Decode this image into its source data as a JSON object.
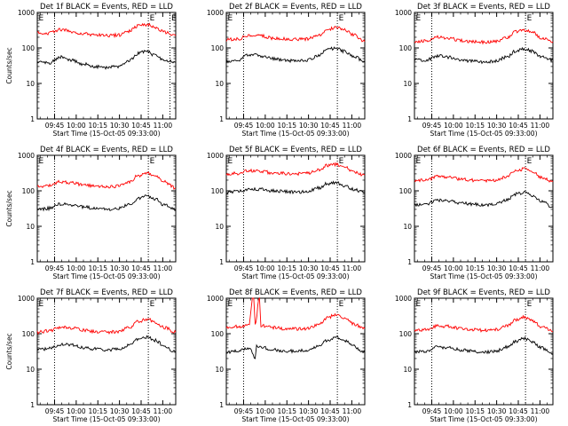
{
  "colors": {
    "events": "#000000",
    "lld": "#ff0000",
    "background": "#ffffff"
  },
  "chart_data": [
    {
      "type": "line",
      "panel": 1,
      "title": "Det 1f BLACK = Events, RED = LLD",
      "xlabel": "Start Time (15-Oct-05 09:33:00)",
      "ylabel": "Counts/sec",
      "x_ticks": [
        "09:45",
        "10:00",
        "10:15",
        "10:30",
        "10:45",
        "11:00"
      ],
      "y_ticks": [
        "1",
        "10",
        "100",
        "1000"
      ],
      "yscale": "log",
      "ylim": [
        1,
        1000
      ],
      "xlim": [
        "09:33",
        "11:09"
      ],
      "dotted_lines_at": [
        "09:45",
        "10:50",
        "11:05"
      ],
      "markers": [
        {
          "label": "E",
          "at": "09:33"
        },
        {
          "label": "E",
          "at": "10:50"
        },
        {
          "label": "E",
          "at": "11:05"
        }
      ],
      "series": [
        {
          "name": "Events",
          "color": "black",
          "x": [
            "09:33",
            "09:41",
            "09:49",
            "09:57",
            "10:05",
            "10:13",
            "10:21",
            "10:29",
            "10:37",
            "10:43",
            "10:49",
            "10:55",
            "11:01",
            "11:09"
          ],
          "values": [
            40,
            38,
            55,
            45,
            35,
            30,
            28,
            30,
            45,
            70,
            80,
            60,
            45,
            40
          ]
        },
        {
          "name": "LLD",
          "color": "red",
          "x": [
            "09:33",
            "09:41",
            "09:49",
            "09:57",
            "10:05",
            "10:13",
            "10:21",
            "10:29",
            "10:37",
            "10:43",
            "10:49",
            "10:55",
            "11:01",
            "11:09"
          ],
          "values": [
            270,
            260,
            330,
            290,
            250,
            230,
            220,
            230,
            300,
            420,
            450,
            380,
            280,
            220
          ]
        }
      ]
    },
    {
      "type": "line",
      "panel": 2,
      "title": "Det 2f BLACK = Events, RED = LLD",
      "xlabel": "Start Time (15-Oct-05 09:33:00)",
      "ylabel": "",
      "x_ticks": [
        "09:45",
        "10:00",
        "10:15",
        "10:30",
        "10:45",
        "11:00"
      ],
      "y_ticks": [
        "1",
        "10",
        "100",
        "1000"
      ],
      "yscale": "log",
      "ylim": [
        1,
        1000
      ],
      "xlim": [
        "09:33",
        "11:09"
      ],
      "dotted_lines_at": [
        "09:45",
        "10:50"
      ],
      "markers": [
        {
          "label": "E",
          "at": "09:33"
        },
        {
          "label": "E",
          "at": "10:50"
        }
      ],
      "series": [
        {
          "name": "Events",
          "color": "black",
          "x": [
            "09:33",
            "09:41",
            "09:49",
            "09:57",
            "10:05",
            "10:13",
            "10:21",
            "10:29",
            "10:37",
            "10:43",
            "10:49",
            "10:55",
            "11:01",
            "11:09"
          ],
          "values": [
            40,
            45,
            65,
            60,
            50,
            45,
            43,
            45,
            60,
            90,
            100,
            80,
            60,
            40
          ]
        },
        {
          "name": "LLD",
          "color": "red",
          "x": [
            "09:33",
            "09:41",
            "09:49",
            "09:57",
            "10:05",
            "10:13",
            "10:21",
            "10:29",
            "10:37",
            "10:43",
            "10:49",
            "10:55",
            "11:01",
            "11:09"
          ],
          "values": [
            170,
            180,
            230,
            220,
            190,
            180,
            175,
            180,
            230,
            330,
            380,
            320,
            240,
            150
          ]
        }
      ]
    },
    {
      "type": "line",
      "panel": 3,
      "title": "Det 3f BLACK = Events, RED = LLD",
      "xlabel": "Start Time (15-Oct-05 09:33:00)",
      "ylabel": "",
      "x_ticks": [
        "09:45",
        "10:00",
        "10:15",
        "10:30",
        "10:45",
        "11:00"
      ],
      "y_ticks": [
        "1",
        "10",
        "100",
        "1000"
      ],
      "yscale": "log",
      "ylim": [
        1,
        1000
      ],
      "xlim": [
        "09:33",
        "11:09"
      ],
      "dotted_lines_at": [
        "09:45",
        "10:50"
      ],
      "markers": [
        {
          "label": "E",
          "at": "09:33"
        },
        {
          "label": "E",
          "at": "10:50"
        }
      ],
      "series": [
        {
          "name": "Events",
          "color": "black",
          "x": [
            "09:33",
            "09:41",
            "09:49",
            "09:57",
            "10:05",
            "10:13",
            "10:21",
            "10:29",
            "10:37",
            "10:43",
            "10:49",
            "10:55",
            "11:01",
            "11:09"
          ],
          "values": [
            45,
            45,
            60,
            55,
            45,
            42,
            40,
            42,
            55,
            80,
            95,
            80,
            55,
            45
          ]
        },
        {
          "name": "LLD",
          "color": "red",
          "x": [
            "09:33",
            "09:41",
            "09:49",
            "09:57",
            "10:05",
            "10:13",
            "10:21",
            "10:29",
            "10:37",
            "10:43",
            "10:49",
            "10:55",
            "11:01",
            "11:09"
          ],
          "values": [
            150,
            160,
            200,
            190,
            160,
            150,
            145,
            150,
            190,
            280,
            320,
            270,
            190,
            150
          ]
        }
      ]
    },
    {
      "type": "line",
      "panel": 4,
      "title": "Det 4f BLACK = Events, RED = LLD",
      "xlabel": "Start Time (15-Oct-05 09:33:00)",
      "ylabel": "Counts/sec",
      "x_ticks": [
        "09:45",
        "10:00",
        "10:15",
        "10:30",
        "10:45",
        "11:00"
      ],
      "y_ticks": [
        "1",
        "10",
        "100",
        "1000"
      ],
      "yscale": "log",
      "ylim": [
        1,
        1000
      ],
      "xlim": [
        "09:33",
        "11:09"
      ],
      "dotted_lines_at": [
        "09:45",
        "10:50"
      ],
      "markers": [
        {
          "label": "E",
          "at": "09:33"
        },
        {
          "label": "E",
          "at": "10:50"
        }
      ],
      "series": [
        {
          "name": "Events",
          "color": "black",
          "x": [
            "09:33",
            "09:41",
            "09:49",
            "09:57",
            "10:05",
            "10:13",
            "10:21",
            "10:29",
            "10:37",
            "10:43",
            "10:49",
            "10:55",
            "11:01",
            "11:09"
          ],
          "values": [
            30,
            32,
            42,
            40,
            35,
            32,
            30,
            32,
            42,
            60,
            70,
            60,
            40,
            30
          ]
        },
        {
          "name": "LLD",
          "color": "red",
          "x": [
            "09:33",
            "09:41",
            "09:49",
            "09:57",
            "10:05",
            "10:13",
            "10:21",
            "10:29",
            "10:37",
            "10:43",
            "10:49",
            "10:55",
            "11:01",
            "11:09"
          ],
          "values": [
            130,
            140,
            180,
            170,
            145,
            135,
            130,
            135,
            180,
            270,
            310,
            260,
            180,
            120
          ]
        }
      ]
    },
    {
      "type": "line",
      "panel": 5,
      "title": "Det 5f BLACK = Events, RED = LLD",
      "xlabel": "Start Time (15-Oct-05 09:33:00)",
      "ylabel": "",
      "x_ticks": [
        "09:45",
        "10:00",
        "10:15",
        "10:30",
        "10:45",
        "11:00"
      ],
      "y_ticks": [
        "1",
        "10",
        "100",
        "1000"
      ],
      "yscale": "log",
      "ylim": [
        1,
        1000
      ],
      "xlim": [
        "09:33",
        "11:09"
      ],
      "dotted_lines_at": [
        "09:45",
        "10:50"
      ],
      "markers": [
        {
          "label": "E",
          "at": "09:33"
        },
        {
          "label": "E",
          "at": "10:50"
        }
      ],
      "series": [
        {
          "name": "Events",
          "color": "black",
          "x": [
            "09:33",
            "09:41",
            "09:49",
            "09:57",
            "10:05",
            "10:13",
            "10:21",
            "10:29",
            "10:37",
            "10:43",
            "10:49",
            "10:55",
            "11:01",
            "11:09"
          ],
          "values": [
            90,
            95,
            115,
            110,
            100,
            95,
            92,
            95,
            120,
            160,
            170,
            140,
            110,
            90
          ]
        },
        {
          "name": "LLD",
          "color": "red",
          "x": [
            "09:33",
            "09:41",
            "09:49",
            "09:57",
            "10:05",
            "10:13",
            "10:21",
            "10:29",
            "10:37",
            "10:43",
            "10:49",
            "10:55",
            "11:01",
            "11:09"
          ],
          "values": [
            300,
            310,
            370,
            360,
            320,
            310,
            300,
            310,
            380,
            520,
            560,
            470,
            350,
            280
          ]
        }
      ]
    },
    {
      "type": "line",
      "panel": 6,
      "title": "Det 6f BLACK = Events, RED = LLD",
      "xlabel": "Start Time (15-Oct-05 09:33:00)",
      "ylabel": "",
      "x_ticks": [
        "09:45",
        "10:00",
        "10:15",
        "10:30",
        "10:45",
        "11:00"
      ],
      "y_ticks": [
        "1",
        "10",
        "100",
        "1000"
      ],
      "yscale": "log",
      "ylim": [
        1,
        1000
      ],
      "xlim": [
        "09:33",
        "11:09"
      ],
      "dotted_lines_at": [
        "09:45",
        "10:50"
      ],
      "markers": [
        {
          "label": "E",
          "at": "09:33"
        },
        {
          "label": "E",
          "at": "10:50"
        }
      ],
      "series": [
        {
          "name": "Events",
          "color": "black",
          "x": [
            "09:33",
            "09:41",
            "09:49",
            "09:57",
            "10:05",
            "10:13",
            "10:21",
            "10:29",
            "10:37",
            "10:43",
            "10:49",
            "10:55",
            "11:01",
            "11:09"
          ],
          "values": [
            40,
            42,
            55,
            52,
            45,
            42,
            40,
            42,
            55,
            80,
            90,
            75,
            50,
            35
          ]
        },
        {
          "name": "LLD",
          "color": "red",
          "x": [
            "09:33",
            "09:41",
            "09:49",
            "09:57",
            "10:05",
            "10:13",
            "10:21",
            "10:29",
            "10:37",
            "10:43",
            "10:49",
            "10:55",
            "11:01",
            "11:09"
          ],
          "values": [
            190,
            200,
            250,
            240,
            210,
            200,
            195,
            200,
            250,
            360,
            410,
            340,
            240,
            180
          ]
        }
      ]
    },
    {
      "type": "line",
      "panel": 7,
      "title": "Det 7f BLACK = Events, RED = LLD",
      "xlabel": "Start Time (15-Oct-05 09:33:00)",
      "ylabel": "Counts/sec",
      "x_ticks": [
        "09:45",
        "10:00",
        "10:15",
        "10:30",
        "10:45",
        "11:00"
      ],
      "y_ticks": [
        "1",
        "10",
        "100",
        "1000"
      ],
      "yscale": "log",
      "ylim": [
        1,
        1000
      ],
      "xlim": [
        "09:33",
        "11:09"
      ],
      "dotted_lines_at": [
        "09:45",
        "10:50"
      ],
      "markers": [
        {
          "label": "E",
          "at": "09:33"
        },
        {
          "label": "E",
          "at": "10:50"
        }
      ],
      "series": [
        {
          "name": "Events",
          "color": "black",
          "x": [
            "09:33",
            "09:41",
            "09:49",
            "09:57",
            "10:05",
            "10:13",
            "10:21",
            "10:29",
            "10:37",
            "10:43",
            "10:49",
            "10:55",
            "11:01",
            "11:09"
          ],
          "values": [
            35,
            38,
            50,
            48,
            40,
            37,
            35,
            37,
            48,
            70,
            80,
            65,
            45,
            30
          ]
        },
        {
          "name": "LLD",
          "color": "red",
          "x": [
            "09:33",
            "09:41",
            "09:49",
            "09:57",
            "10:05",
            "10:13",
            "10:21",
            "10:29",
            "10:37",
            "10:43",
            "10:49",
            "10:55",
            "11:01",
            "11:09"
          ],
          "values": [
            110,
            120,
            150,
            145,
            125,
            115,
            110,
            115,
            150,
            220,
            260,
            210,
            150,
            110
          ]
        }
      ]
    },
    {
      "type": "line",
      "panel": 8,
      "title": "Det 8f BLACK = Events, RED = LLD",
      "xlabel": "Start Time (15-Oct-05 09:33:00)",
      "ylabel": "",
      "x_ticks": [
        "09:45",
        "10:00",
        "10:15",
        "10:30",
        "10:45",
        "11:00"
      ],
      "y_ticks": [
        "1",
        "10",
        "100",
        "1000"
      ],
      "yscale": "log",
      "ylim": [
        1,
        1000
      ],
      "xlim": [
        "09:33",
        "11:09"
      ],
      "dotted_lines_at": [
        "09:45",
        "10:50"
      ],
      "markers": [
        {
          "label": "E",
          "at": "09:33"
        },
        {
          "label": "E",
          "at": "10:50"
        }
      ],
      "series": [
        {
          "name": "Events",
          "color": "black",
          "x": [
            "09:33",
            "09:41",
            "09:49",
            "09:53",
            "09:54",
            "09:57",
            "10:05",
            "10:13",
            "10:21",
            "10:29",
            "10:37",
            "10:43",
            "10:49",
            "10:55",
            "11:01",
            "11:09"
          ],
          "values": [
            30,
            32,
            40,
            20,
            45,
            42,
            36,
            33,
            32,
            34,
            45,
            65,
            80,
            65,
            45,
            30
          ]
        },
        {
          "name": "LLD",
          "color": "red",
          "x": [
            "09:33",
            "09:41",
            "09:49",
            "09:51",
            "09:52",
            "09:53",
            "09:56",
            "09:57",
            "10:05",
            "10:13",
            "10:21",
            "10:29",
            "10:37",
            "10:43",
            "10:49",
            "10:55",
            "11:01",
            "11:09"
          ],
          "values": [
            150,
            160,
            180,
            1000,
            1000,
            180,
            1000,
            170,
            150,
            140,
            135,
            140,
            180,
            280,
            350,
            280,
            190,
            140
          ]
        }
      ]
    },
    {
      "type": "line",
      "panel": 9,
      "title": "Det 9f BLACK = Events, RED = LLD",
      "xlabel": "Start Time (15-Oct-05 09:33:00)",
      "ylabel": "",
      "x_ticks": [
        "09:45",
        "10:00",
        "10:15",
        "10:30",
        "10:45",
        "11:00"
      ],
      "y_ticks": [
        "1",
        "10",
        "100",
        "1000"
      ],
      "yscale": "log",
      "ylim": [
        1,
        1000
      ],
      "xlim": [
        "09:33",
        "11:09"
      ],
      "dotted_lines_at": [
        "09:45",
        "10:50"
      ],
      "markers": [
        {
          "label": "E",
          "at": "09:33"
        },
        {
          "label": "E",
          "at": "10:50"
        }
      ],
      "series": [
        {
          "name": "Events",
          "color": "black",
          "x": [
            "09:33",
            "09:41",
            "09:49",
            "09:57",
            "10:05",
            "10:13",
            "10:21",
            "10:29",
            "10:37",
            "10:43",
            "10:49",
            "10:55",
            "11:01",
            "11:09"
          ],
          "values": [
            30,
            32,
            42,
            40,
            35,
            32,
            30,
            32,
            42,
            60,
            75,
            60,
            40,
            28
          ]
        },
        {
          "name": "LLD",
          "color": "red",
          "x": [
            "09:33",
            "09:41",
            "09:49",
            "09:57",
            "10:05",
            "10:13",
            "10:21",
            "10:29",
            "10:37",
            "10:43",
            "10:49",
            "10:55",
            "11:01",
            "11:09"
          ],
          "values": [
            120,
            130,
            165,
            160,
            140,
            130,
            125,
            130,
            165,
            240,
            290,
            230,
            160,
            115
          ]
        }
      ]
    }
  ]
}
